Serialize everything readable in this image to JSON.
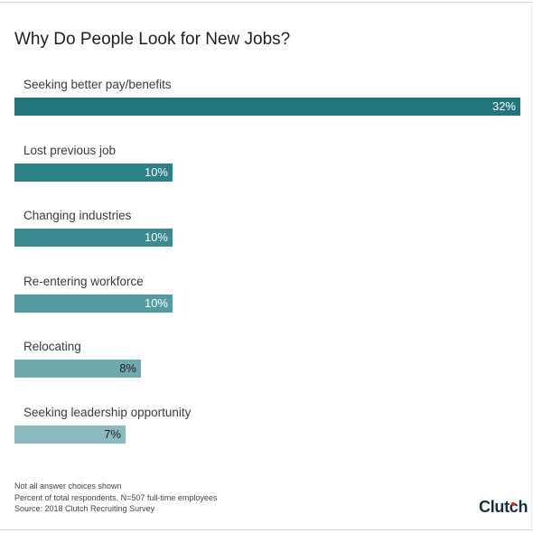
{
  "title": "Why Do People Look for New Jobs?",
  "chart_data": {
    "type": "bar",
    "orientation": "horizontal",
    "categories": [
      "Seeking better pay/benefits",
      "Lost previous job",
      "Changing industries",
      "Re-entering workforce",
      "Relocating",
      "Seeking leadership opportunity"
    ],
    "values": [
      32,
      10,
      10,
      10,
      8,
      7
    ],
    "value_labels": [
      "32%",
      "10%",
      "10%",
      "10%",
      "8%",
      "7%"
    ],
    "title": "Why Do People Look for New Jobs?",
    "xlabel": "",
    "ylabel": "",
    "xlim": [
      0,
      32
    ],
    "grid": false,
    "legend": "none",
    "colors": [
      "#23757d",
      "#2d8088",
      "#3b8a92",
      "#579ba2",
      "#6fa9ae",
      "#8bbbbf"
    ],
    "label_colors": [
      "#ffffff",
      "#ffffff",
      "#ffffff",
      "#ffffff",
      "#1f1f1f",
      "#1f1f1f"
    ]
  },
  "footnotes": [
    "Not all answer choices shown",
    "Percent of total respondents, N=507 full-time employees",
    "Source: 2018 Clutch Recruiting Survey"
  ],
  "logo": "Clutch"
}
